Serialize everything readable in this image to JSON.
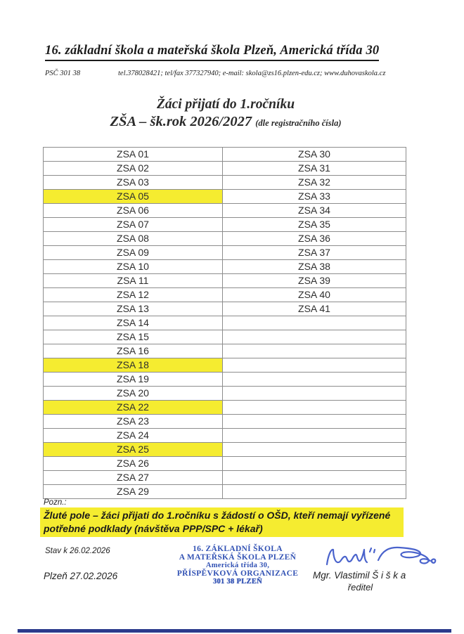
{
  "header": {
    "school_title": "16. základní škola a mateřská škola Plzeň, Americká třída 30",
    "psc": "PSČ 301 38",
    "contacts": "tel.378028421; tel/fax 377327940; e-mail: skola@zs16.plzen-edu.cz; www.duhovaskola.cz"
  },
  "title": {
    "line1": "Žáci přijatí do 1.ročníku",
    "line2_main": "ZŠA – šk.rok 2026/2027",
    "line2_note": "(dle registračního čísla)"
  },
  "table": {
    "rows": [
      {
        "left": "ZSA 01",
        "right": "ZSA 30",
        "left_highlight": false
      },
      {
        "left": "ZSA 02",
        "right": "ZSA 31",
        "left_highlight": false
      },
      {
        "left": "ZSA 03",
        "right": "ZSA 32",
        "left_highlight": false
      },
      {
        "left": "ZSA 05",
        "right": "ZSA 33",
        "left_highlight": true
      },
      {
        "left": "ZSA 06",
        "right": "ZSA 34",
        "left_highlight": false
      },
      {
        "left": "ZSA 07",
        "right": "ZSA 35",
        "left_highlight": false
      },
      {
        "left": "ZSA 08",
        "right": "ZSA 36",
        "left_highlight": false
      },
      {
        "left": "ZSA 09",
        "right": "ZSA 37",
        "left_highlight": false
      },
      {
        "left": "ZSA 10",
        "right": "ZSA 38",
        "left_highlight": false
      },
      {
        "left": "ZSA 11",
        "right": "ZSA 39",
        "left_highlight": false
      },
      {
        "left": "ZSA 12",
        "right": "ZSA 40",
        "left_highlight": false
      },
      {
        "left": "ZSA 13",
        "right": "ZSA 41",
        "left_highlight": false
      },
      {
        "left": "ZSA 14",
        "right": "",
        "left_highlight": false
      },
      {
        "left": "ZSA 15",
        "right": "",
        "left_highlight": false
      },
      {
        "left": "ZSA 16",
        "right": "",
        "left_highlight": false
      },
      {
        "left": "ZSA 18",
        "right": "",
        "left_highlight": true
      },
      {
        "left": "ZSA 19",
        "right": "",
        "left_highlight": false
      },
      {
        "left": "ZSA 20",
        "right": "",
        "left_highlight": false
      },
      {
        "left": "ZSA 22",
        "right": "",
        "left_highlight": true
      },
      {
        "left": "ZSA 23",
        "right": "",
        "left_highlight": false
      },
      {
        "left": "ZSA 24",
        "right": "",
        "left_highlight": false
      },
      {
        "left": "ZSA 25",
        "right": "",
        "left_highlight": true
      },
      {
        "left": "ZSA 26",
        "right": "",
        "left_highlight": false
      },
      {
        "left": "ZSA 27",
        "right": "",
        "left_highlight": false
      },
      {
        "left": "ZSA 29",
        "right": "",
        "left_highlight": false
      }
    ]
  },
  "note": {
    "label": "Pozn.:",
    "lines": [
      "Žluté pole – žáci přijati do 1.ročníku s žádostí o OŠD, kteří nemají vyřízené",
      "potřebné podklady (návštěva PPP/SPC + lékař)"
    ]
  },
  "stamp": {
    "lines": [
      "16. ZÁKLADNÍ ŠKOLA",
      "A MATEŘSKÁ ŠKOLA PLZEŇ",
      "Americká třída 30,",
      "PŘÍSPĚVKOVÁ ORGANIZACE",
      "301 38 PLZEŇ"
    ]
  },
  "footer": {
    "stav": "Stav k 26.02.2026",
    "place_date": "Plzeň 27.02.2026",
    "signatory": "Mgr. Vlastimil Š i š k a",
    "role": "ředitel"
  },
  "colors": {
    "highlight_yellow": "#f5ec30",
    "stamp_blue": "#3252b4",
    "signature_blue": "#4a63cc",
    "bottom_line_navy": "#2b3a8c"
  }
}
